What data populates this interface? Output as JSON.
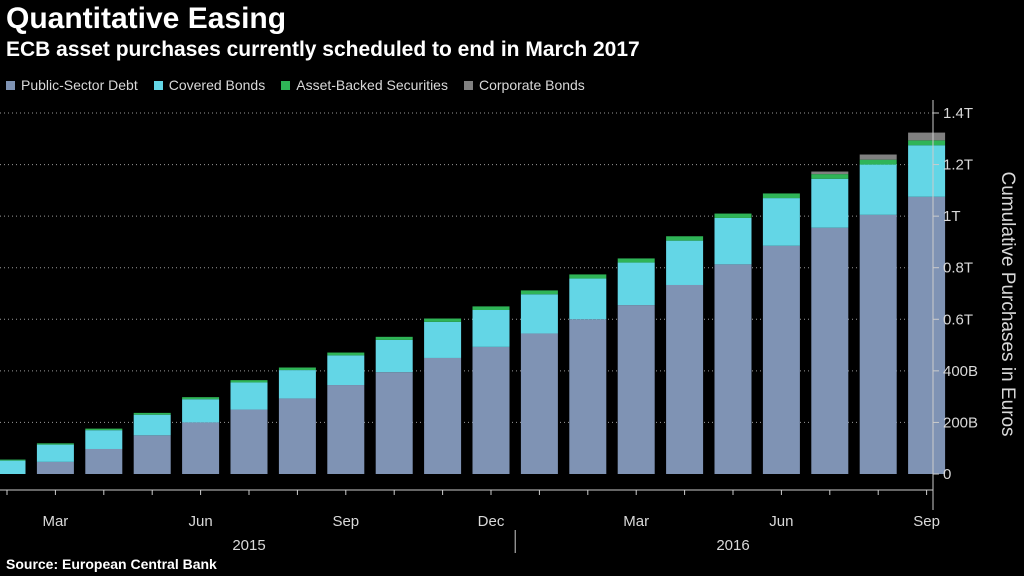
{
  "header": {
    "title": "Quantitative Easing",
    "subtitle": "ECB asset purchases currently scheduled to end in March 2017"
  },
  "footer": {
    "source": "Source: European Central Bank"
  },
  "colors": {
    "public_sector": "#7f93b4",
    "covered": "#63d6e6",
    "abs": "#2fb457",
    "corporate": "#808080",
    "axis": "#cccccc",
    "grid": "#9a9a9a"
  },
  "chart_data": {
    "type": "bar",
    "stacked": true,
    "title": "Quantitative Easing",
    "subtitle": "ECB asset purchases currently scheduled to end in March 2017",
    "ylabel": "Cumulative Purchases in Euros",
    "y_axis_side": "right",
    "ylim": [
      0,
      1400
    ],
    "y_unit": "billions of euros",
    "y_ticks": [
      {
        "value": 0,
        "label": "0"
      },
      {
        "value": 200,
        "label": "200B"
      },
      {
        "value": 400,
        "label": "400B"
      },
      {
        "value": 600,
        "label": "0.6T"
      },
      {
        "value": 800,
        "label": "0.8T"
      },
      {
        "value": 1000,
        "label": "1T"
      },
      {
        "value": 1200,
        "label": "1.2T"
      },
      {
        "value": 1400,
        "label": "1.4T"
      }
    ],
    "grid": "horizontal dashed",
    "legend_position": "top-left",
    "categories": [
      "Feb 2015",
      "Mar 2015",
      "Apr 2015",
      "May 2015",
      "Jun 2015",
      "Jul 2015",
      "Aug 2015",
      "Sep 2015",
      "Oct 2015",
      "Nov 2015",
      "Dec 2015",
      "Jan 2016",
      "Feb 2016",
      "Mar 2016",
      "Apr 2016",
      "May 2016",
      "Jun 2016",
      "Jul 2016",
      "Aug 2016",
      "Sep 2016"
    ],
    "x_tick_labels": [
      {
        "index": 1,
        "label": "Mar"
      },
      {
        "index": 4,
        "label": "Jun"
      },
      {
        "index": 7,
        "label": "Sep"
      },
      {
        "index": 10,
        "label": "Dec"
      },
      {
        "index": 13,
        "label": "Mar"
      },
      {
        "index": 16,
        "label": "Jun"
      },
      {
        "index": 19,
        "label": "Sep"
      }
    ],
    "x_year_labels": [
      {
        "label": "2015",
        "from": 0,
        "to": 10
      },
      {
        "label": "2016",
        "from": 11,
        "to": 19
      }
    ],
    "series": [
      {
        "name": "Public-Sector Debt",
        "color": "#7f93b4",
        "values": [
          0,
          47,
          97,
          150,
          200,
          250,
          293,
          345,
          395,
          450,
          493,
          545,
          600,
          655,
          733,
          813,
          885,
          955,
          1005,
          1075
        ]
      },
      {
        "name": "Covered Bonds",
        "color": "#63d6e6",
        "values": [
          52,
          67,
          73,
          80,
          90,
          105,
          110,
          115,
          125,
          140,
          143,
          152,
          158,
          165,
          172,
          180,
          185,
          190,
          195,
          200
        ]
      },
      {
        "name": "Asset-Backed Securities",
        "color": "#2fb457",
        "values": [
          4,
          5,
          6,
          7,
          8,
          9,
          10,
          11,
          12,
          13,
          14,
          15,
          16,
          16,
          17,
          17,
          18,
          18,
          19,
          19
        ]
      },
      {
        "name": "Corporate Bonds",
        "color": "#808080",
        "values": [
          0,
          0,
          0,
          0,
          0,
          0,
          0,
          0,
          0,
          0,
          0,
          0,
          0,
          0,
          0,
          0,
          0,
          10,
          20,
          30
        ]
      }
    ]
  }
}
